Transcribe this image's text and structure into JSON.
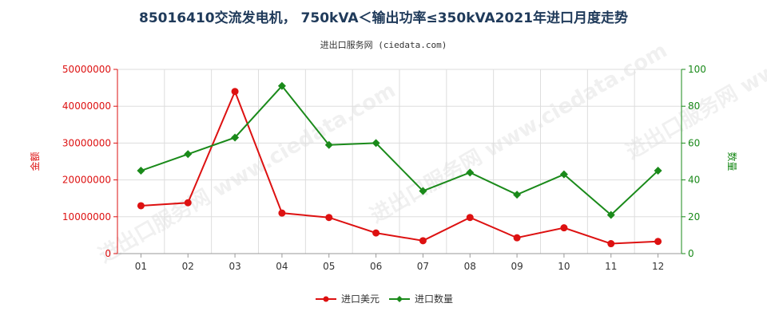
{
  "title": "85016410交流发电机， 750kVA＜输出功率≤350kVA2021年进口月度走势",
  "subtitle": "进出口服务网 (ciedata.com)",
  "watermark": "进出口服务网 www.ciedata.com",
  "chart_data": {
    "type": "line",
    "categories": [
      "01",
      "02",
      "03",
      "04",
      "05",
      "06",
      "07",
      "08",
      "09",
      "10",
      "11",
      "12"
    ],
    "y_left": {
      "label": "金额",
      "ylim": [
        0,
        50000000
      ],
      "ticks": [
        "0",
        "10000000",
        "20000000",
        "30000000",
        "40000000",
        "50000000"
      ],
      "color": "#dd1111"
    },
    "y_right": {
      "label": "数量",
      "ylim": [
        0,
        100
      ],
      "ticks": [
        "0",
        "20",
        "40",
        "60",
        "80",
        "100"
      ],
      "color": "#1a8a1a"
    },
    "series": [
      {
        "name": "进口美元",
        "axis": "left",
        "color": "#dd1111",
        "values": [
          13000000,
          13800000,
          44000000,
          11000000,
          9800000,
          5600000,
          3500000,
          9800000,
          4300000,
          7000000,
          2700000,
          3300000
        ]
      },
      {
        "name": "进口数量",
        "axis": "right",
        "color": "#1a8a1a",
        "values": [
          45,
          54,
          63,
          91,
          59,
          60,
          34,
          44,
          32,
          43,
          21,
          45
        ]
      }
    ],
    "grid": true,
    "legend_position": "bottom-center"
  }
}
